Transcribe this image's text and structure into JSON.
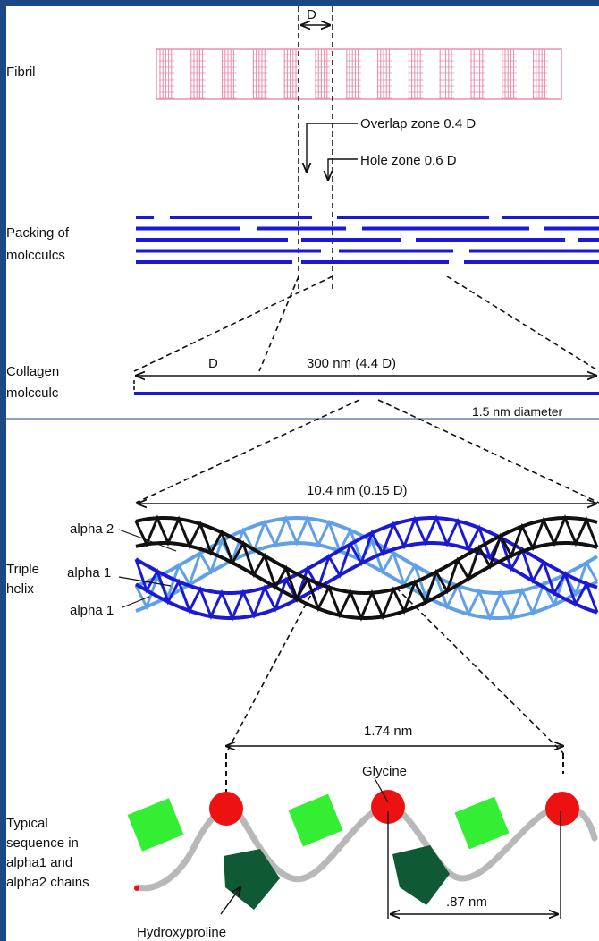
{
  "sections": {
    "fibril": "Fibril",
    "packing_line1": "Packing of",
    "packing_line2": "molcculcs",
    "molecule_line1": "Collagen",
    "molecule_line2": "molcculc",
    "helix_line1": "Triple",
    "helix_line2": "helix",
    "sequence_line1": "Typical",
    "sequence_line2": "sequence in",
    "sequence_line3": "alpha1 and",
    "sequence_line4": "alpha2 chains"
  },
  "annotations": {
    "period_d": "D",
    "overlap_zone": "Overlap zone 0.4 D",
    "hole_zone": "Hole zone 0.6 D",
    "molecule_d": "D",
    "molecule_length": "300 nm (4.4 D)",
    "diameter": "1.5 nm diameter",
    "helix_pitch": "10.4 nm (0.15 D)",
    "chain_alpha2": "alpha 2",
    "chain_alpha1_a": "alpha 1",
    "chain_alpha1_b": "alpha 1",
    "residue_spacing": "1.74 nm",
    "glycine": "Glycine",
    "glycine_spacing": ".87 nm",
    "hydroxyproline": "Hydroxyproline"
  },
  "colors": {
    "fibril": "#e98aa8",
    "molecule": "#1a1ad6",
    "alpha1_dark": "#1a1ad6",
    "alpha1_light": "#5fa0e8",
    "alpha2": "#111111",
    "glycine": "#ee1111",
    "light_residue": "#33ee33",
    "hydroxyproline": "#0f5a34",
    "backbone": "#b8b8b8"
  }
}
